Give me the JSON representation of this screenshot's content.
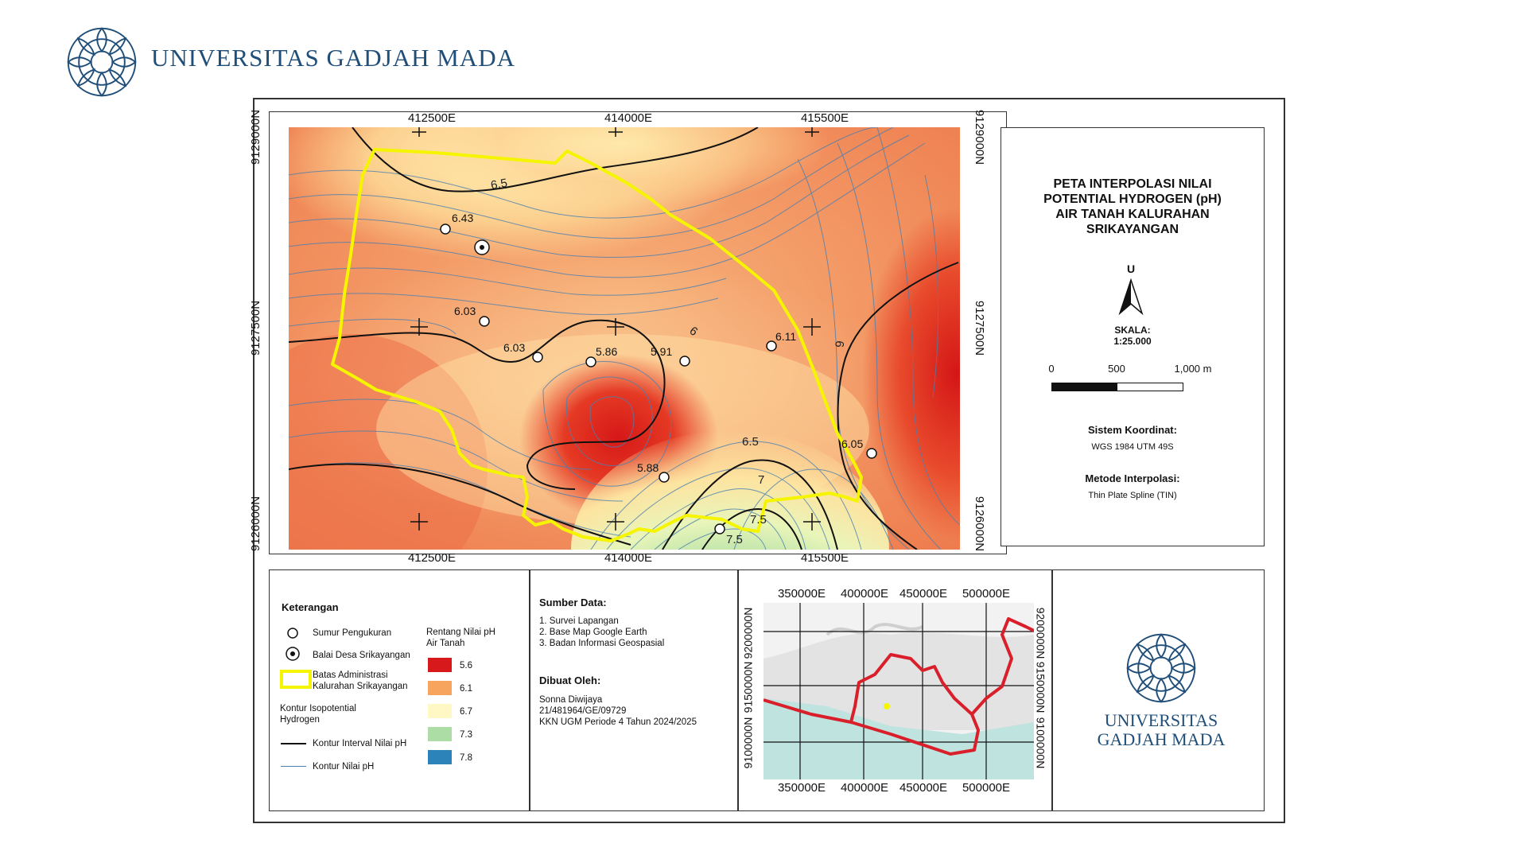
{
  "header": {
    "university_name": "UNIVERSITAS GADJAH MADA"
  },
  "map": {
    "coords_top": [
      "412500E",
      "414000E",
      "415500E"
    ],
    "coords_bottom": [
      "412500E",
      "414000E",
      "415500E"
    ],
    "coords_left": [
      "9129000N",
      "9127500N",
      "9126000N"
    ],
    "coords_right": [
      "9129000N",
      "9127500N",
      "9126000N"
    ],
    "contour_labels": [
      "6.5",
      "6",
      "6",
      "6.5",
      "7",
      "7.5",
      "7.5"
    ],
    "sample_points": [
      {
        "label": "6.43",
        "value": 6.43
      },
      {
        "label": "6.03",
        "value": 6.03
      },
      {
        "label": "6.03",
        "value": 6.03
      },
      {
        "label": "5.86",
        "value": 5.86
      },
      {
        "label": "5.91",
        "value": 5.91
      },
      {
        "label": "6.11",
        "value": 6.11
      },
      {
        "label": "5.88",
        "value": 5.88
      },
      {
        "label": "6.05",
        "value": 6.05
      }
    ],
    "colors": {
      "low": "#d7191c",
      "mid": "#fdae61",
      "high_mid": "#ffffbf",
      "high": "#abdda4",
      "very_high": "#2b83ba",
      "boundary": "#f5f500"
    }
  },
  "title_block": {
    "title_lines": [
      "PETA INTERPOLASI NILAI",
      "POTENTIAL HYDROGEN (pH)",
      "AIR TANAH KALURAHAN",
      "SRIKAYANGAN"
    ],
    "north": "U",
    "scale_heading": "SKALA:",
    "scale_value": "1:25.000",
    "scale_ticks": [
      "0",
      "500",
      "1,000 m"
    ],
    "crs_heading": "Sistem Koordinat:",
    "crs_value": "WGS 1984 UTM 49S",
    "method_heading": "Metode Interpolasi:",
    "method_value": "Thin Plate Spline (TIN)"
  },
  "legend": {
    "title": "Keterangan",
    "items": {
      "well": "Sumur Pengukuran",
      "village_hall": "Balai Desa Srikayangan",
      "boundary_1": "Batas Administrasi",
      "boundary_2": "Kalurahan Srikayangan",
      "contour_heading_1": "Kontur Isopotential",
      "contour_heading_2": "Hydrogen",
      "contour_interval": "Kontur Interval Nilai pH",
      "contour_value": "Kontur Nilai pH"
    },
    "range_heading_1": "Rentang Nilai pH",
    "range_heading_2": "Air Tanah",
    "range": [
      {
        "label": "5.6",
        "color": "#d7191c"
      },
      {
        "label": "6.1",
        "color": "#fdae61"
      },
      {
        "label": "6.7",
        "color": "#ffffbf"
      },
      {
        "label": "7.3",
        "color": "#abdda4"
      },
      {
        "label": "7.8",
        "color": "#2b83ba"
      }
    ]
  },
  "sources": {
    "heading": "Sumber Data:",
    "items": [
      "1. Survei Lapangan",
      "2. Base Map Google Earth",
      "3. Badan Informasi Geospasial"
    ],
    "author_heading": "Dibuat Oleh:",
    "author_lines": [
      "Sonna Diwijaya",
      "21/481964/GE/09729",
      "KKN UGM Periode 4 Tahun 2024/2025"
    ]
  },
  "inset": {
    "coords_top": [
      "350000E",
      "400000E",
      "450000E",
      "500000E"
    ],
    "coords_bottom": [
      "350000E",
      "400000E",
      "450000E",
      "500000E"
    ],
    "coords_left": [
      "9200000N",
      "9150000N",
      "9100000N"
    ],
    "coords_right": [
      "9200000N",
      "9150000N",
      "9100000N"
    ]
  },
  "footer": {
    "name_line_1": "UNIVERSITAS",
    "name_line_2": "GADJAH MADA"
  }
}
